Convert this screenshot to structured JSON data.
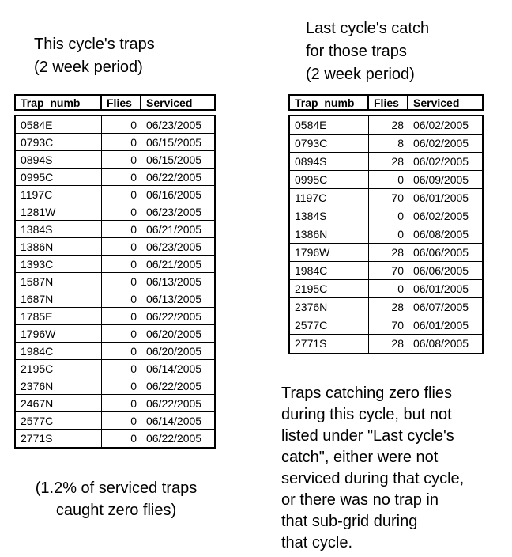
{
  "page": {
    "background": "#ffffff",
    "text_color": "#000000",
    "border_color": "#000000"
  },
  "left_table": {
    "title_lines": [
      "This cycle's traps",
      "(2 week period)"
    ],
    "columns": [
      "Trap_numb",
      "Flies",
      "Serviced"
    ],
    "rows": [
      [
        "0584E",
        0,
        "06/23/2005"
      ],
      [
        "0793C",
        0,
        "06/15/2005"
      ],
      [
        "0894S",
        0,
        "06/15/2005"
      ],
      [
        "0995C",
        0,
        "06/22/2005"
      ],
      [
        "1197C",
        0,
        "06/16/2005"
      ],
      [
        "1281W",
        0,
        "06/23/2005"
      ],
      [
        "1384S",
        0,
        "06/21/2005"
      ],
      [
        "1386N",
        0,
        "06/23/2005"
      ],
      [
        "1393C",
        0,
        "06/21/2005"
      ],
      [
        "1587N",
        0,
        "06/13/2005"
      ],
      [
        "1687N",
        0,
        "06/13/2005"
      ],
      [
        "1785E",
        0,
        "06/22/2005"
      ],
      [
        "1796W",
        0,
        "06/20/2005"
      ],
      [
        "1984C",
        0,
        "06/20/2005"
      ],
      [
        "2195C",
        0,
        "06/14/2005"
      ],
      [
        "2376N",
        0,
        "06/22/2005"
      ],
      [
        "2467N",
        0,
        "06/22/2005"
      ],
      [
        "2577C",
        0,
        "06/14/2005"
      ],
      [
        "2771S",
        0,
        "06/22/2005"
      ]
    ],
    "footnote_lines": [
      "(1.2% of serviced traps",
      "caught zero flies)"
    ]
  },
  "right_table": {
    "title_lines": [
      "Last cycle's catch",
      "for those traps",
      "(2 week period)"
    ],
    "columns": [
      "Trap_numb",
      "Flies",
      "Serviced"
    ],
    "rows": [
      [
        "0584E",
        28,
        "06/02/2005"
      ],
      [
        "0793C",
        8,
        "06/02/2005"
      ],
      [
        "0894S",
        28,
        "06/02/2005"
      ],
      [
        "0995C",
        0,
        "06/09/2005"
      ],
      [
        "1197C",
        70,
        "06/01/2005"
      ],
      [
        "1384S",
        0,
        "06/02/2005"
      ],
      [
        "1386N",
        0,
        "06/08/2005"
      ],
      [
        "1796W",
        28,
        "06/06/2005"
      ],
      [
        "1984C",
        70,
        "06/06/2005"
      ],
      [
        "2195C",
        0,
        "06/01/2005"
      ],
      [
        "2376N",
        28,
        "06/07/2005"
      ],
      [
        "2577C",
        70,
        "06/01/2005"
      ],
      [
        "2771S",
        28,
        "06/08/2005"
      ]
    ],
    "note_lines": [
      "Traps catching zero flies",
      "during this cycle, but not",
      "listed under \"Last cycle's",
      "catch\", either were not",
      "serviced during that cycle,",
      "or there was no trap in",
      "that sub-grid during",
      "that cycle."
    ]
  }
}
